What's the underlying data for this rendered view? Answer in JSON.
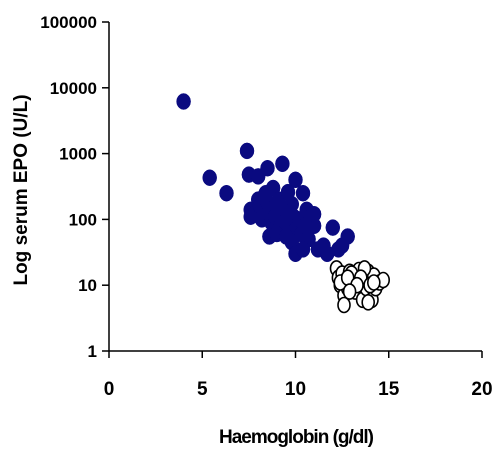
{
  "chart_data": {
    "type": "scatter",
    "title": "",
    "xlabel": "Haemoglobin (g/dl)",
    "ylabel": "Log serum EPO (U/L)",
    "xlim": [
      0,
      20
    ],
    "ylim": [
      1,
      100000
    ],
    "y_scale": "log",
    "grid": false,
    "x_ticks": [
      "0",
      "5",
      "10",
      "15",
      "20"
    ],
    "y_ticks": [
      "1",
      "10",
      "100",
      "1000",
      "10000",
      "100000"
    ],
    "series": [
      {
        "marker": "filled-ellipse",
        "color": "#0a0a80",
        "points": [
          [
            4.0,
            6200
          ],
          [
            5.4,
            430
          ],
          [
            6.3,
            250
          ],
          [
            7.4,
            1100
          ],
          [
            7.5,
            480
          ],
          [
            8.0,
            450
          ],
          [
            8.5,
            600
          ],
          [
            9.3,
            700
          ],
          [
            10.0,
            400
          ],
          [
            10.4,
            250
          ],
          [
            7.6,
            140
          ],
          [
            7.6,
            110
          ],
          [
            7.8,
            120
          ],
          [
            8.0,
            200
          ],
          [
            8.1,
            160
          ],
          [
            8.2,
            100
          ],
          [
            8.3,
            130
          ],
          [
            8.4,
            250
          ],
          [
            8.5,
            180
          ],
          [
            8.6,
            140
          ],
          [
            8.7,
            90
          ],
          [
            8.8,
            300
          ],
          [
            8.9,
            110
          ],
          [
            9.0,
            120
          ],
          [
            9.1,
            200
          ],
          [
            9.2,
            80
          ],
          [
            9.3,
            150
          ],
          [
            9.4,
            90
          ],
          [
            9.6,
            260
          ],
          [
            9.8,
            170
          ],
          [
            9.9,
            110
          ],
          [
            10.0,
            70
          ],
          [
            10.2,
            100
          ],
          [
            10.3,
            60
          ],
          [
            10.5,
            80
          ],
          [
            10.6,
            140
          ],
          [
            10.7,
            50
          ],
          [
            11.0,
            80
          ],
          [
            11.2,
            35
          ],
          [
            11.5,
            40
          ],
          [
            8.6,
            55
          ],
          [
            9.0,
            60
          ],
          [
            9.5,
            55
          ],
          [
            9.8,
            45
          ],
          [
            10.0,
            30
          ],
          [
            10.4,
            35
          ],
          [
            10.8,
            110
          ],
          [
            11.0,
            120
          ],
          [
            12.0,
            75
          ],
          [
            12.3,
            35
          ],
          [
            12.8,
            55
          ],
          [
            12.5,
            40
          ],
          [
            11.7,
            30
          ],
          [
            8.3,
            220
          ],
          [
            9.7,
            130
          ]
        ]
      },
      {
        "marker": "open-ellipse",
        "color": "#ffffff",
        "points": [
          [
            12.2,
            18
          ],
          [
            12.3,
            13
          ],
          [
            12.4,
            10
          ],
          [
            12.5,
            15
          ],
          [
            12.6,
            7
          ],
          [
            12.7,
            12
          ],
          [
            12.6,
            5
          ],
          [
            12.8,
            9
          ],
          [
            12.9,
            16
          ],
          [
            13.0,
            11
          ],
          [
            13.1,
            14
          ],
          [
            13.2,
            8
          ],
          [
            13.3,
            12
          ],
          [
            13.4,
            17
          ],
          [
            13.5,
            10
          ],
          [
            13.6,
            6
          ],
          [
            13.7,
            13
          ],
          [
            13.8,
            9
          ],
          [
            13.9,
            16
          ],
          [
            14.0,
            12
          ],
          [
            14.1,
            6
          ],
          [
            14.2,
            14
          ],
          [
            14.3,
            9
          ],
          [
            14.5,
            11
          ],
          [
            14.7,
            12
          ],
          [
            13.7,
            18
          ],
          [
            12.4,
            11
          ],
          [
            13.0,
            15
          ],
          [
            13.5,
            13
          ],
          [
            14.0,
            10
          ],
          [
            12.8,
            13
          ],
          [
            13.3,
            10
          ],
          [
            14.2,
            11
          ],
          [
            13.9,
            5.5
          ],
          [
            12.9,
            8
          ]
        ]
      }
    ]
  }
}
